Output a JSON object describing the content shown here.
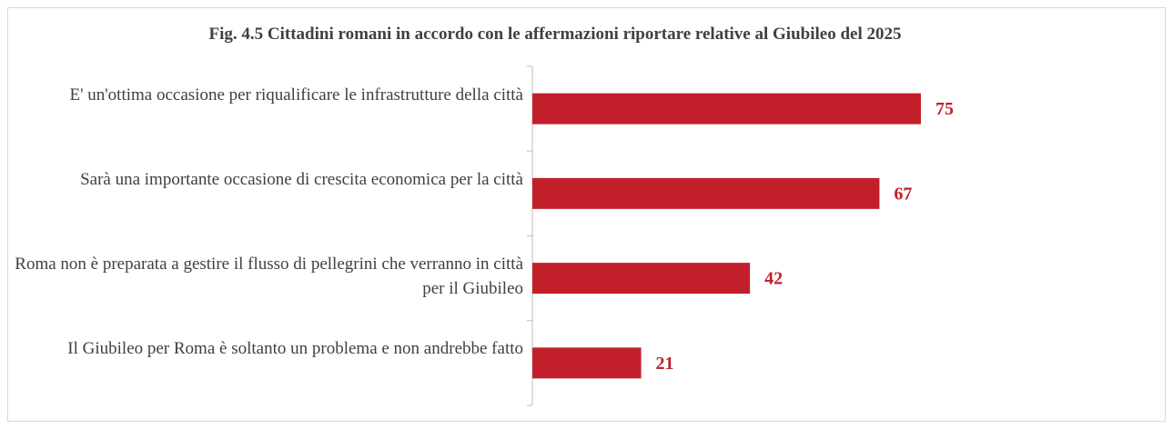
{
  "chart_data": {
    "type": "barh",
    "title": "Fig. 4.5 Cittadini romani in accordo con le affermazioni riportare relative al Giubileo del 2025",
    "categories": [
      "E' un'ottima occasione per riqualificare le infrastrutture della città",
      "Sarà una importante occasione di crescita economica per la città",
      "Roma non è preparata a gestire il flusso di pellegrini che verranno in città per il Giubileo",
      "Il Giubileo per Roma è soltanto un problema e non andrebbe fatto"
    ],
    "values": [
      75,
      67,
      42,
      21
    ],
    "color": "#c1202a"
  }
}
